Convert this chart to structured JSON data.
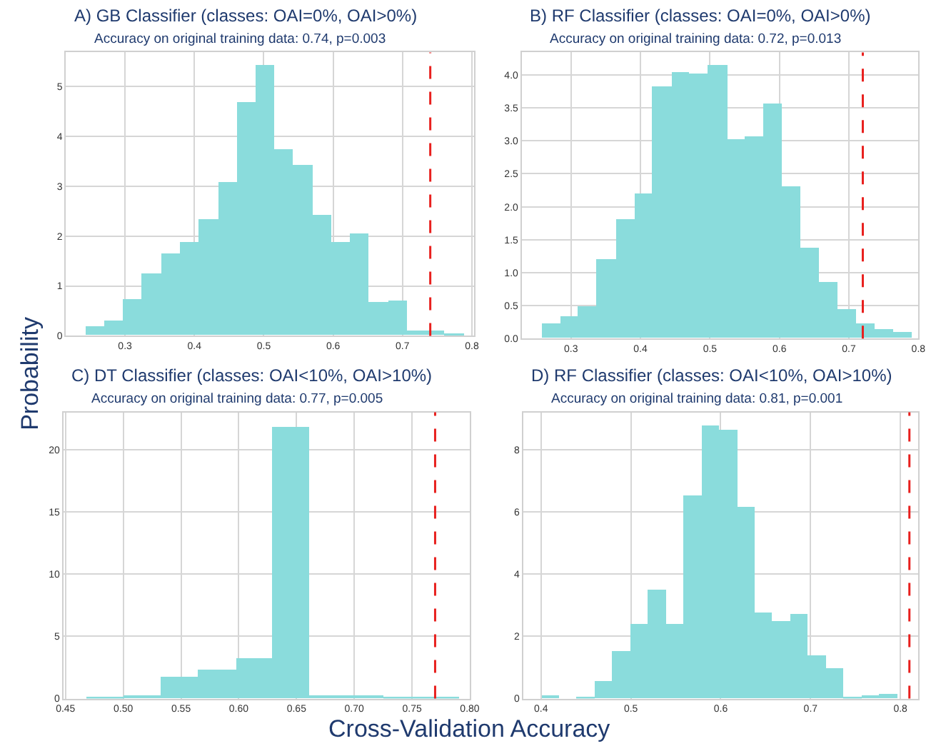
{
  "chart_data": [
    {
      "type": "histogram",
      "title": "A) GB Classifier (classes: OAI=0%, OAI>0%)",
      "subtitle": "Accuracy on original training data: 0.74, p=0.003",
      "ylabel": "Probability",
      "color": "#8adcdc",
      "bins": [
        0.243,
        0.271,
        0.297,
        0.325,
        0.352,
        0.38,
        0.407,
        0.435,
        0.461,
        0.488,
        0.516,
        0.543,
        0.571,
        0.597,
        0.625,
        0.652,
        0.68,
        0.707,
        0.735,
        0.761,
        0.789
      ],
      "values": [
        0.18,
        0.29,
        0.74,
        1.25,
        1.64,
        1.86,
        2.34,
        3.08,
        4.68,
        5.42,
        3.73,
        3.43,
        2.42,
        1.86,
        2.06,
        0.66,
        0.7,
        0.1,
        0.1,
        0.04
      ],
      "xlim": [
        0.215,
        0.803
      ],
      "xticks": [
        0.3,
        0.4,
        0.5,
        0.6,
        0.7,
        0.8
      ],
      "ylim": [
        0,
        5.68
      ],
      "yticks": [
        0,
        1,
        2,
        3,
        4,
        5
      ],
      "grid": true,
      "ref_lines": [
        {
          "axis": "x",
          "value": 0.74,
          "color": "#e8201e",
          "line_style": "dashed"
        }
      ]
    },
    {
      "type": "histogram",
      "title": "B) RF Classifier (classes: OAI=0%, OAI>0%)",
      "subtitle": "Accuracy on original training data: 0.72, p=0.013",
      "color": "#8adcdc",
      "bins": [
        0.257,
        0.284,
        0.31,
        0.336,
        0.364,
        0.391,
        0.417,
        0.444,
        0.47,
        0.497,
        0.524,
        0.55,
        0.577,
        0.604,
        0.63,
        0.657,
        0.684,
        0.71,
        0.737,
        0.763,
        0.791
      ],
      "values": [
        0.22,
        0.33,
        0.48,
        1.2,
        1.81,
        2.2,
        3.81,
        4.03,
        4.01,
        4.14,
        3.02,
        3.06,
        3.55,
        2.31,
        1.38,
        0.85,
        0.44,
        0.22,
        0.14,
        0.1
      ],
      "xlim": [
        0.229,
        0.8
      ],
      "xticks": [
        0.3,
        0.4,
        0.5,
        0.6,
        0.7,
        0.8
      ],
      "ylim": [
        0,
        4.34
      ],
      "yticks": [
        {
          "value": 0,
          "label": "0.0"
        },
        0.5,
        {
          "value": 1,
          "label": "1.0"
        },
        1.5,
        {
          "value": 2,
          "label": "2.0"
        },
        2.5,
        {
          "value": 3,
          "label": "3.0"
        },
        3.5,
        {
          "value": 4,
          "label": "4.0"
        }
      ],
      "grid": true,
      "ref_lines": [
        {
          "axis": "x",
          "value": 0.72,
          "color": "#e8201e",
          "line_style": "dashed"
        }
      ]
    },
    {
      "type": "histogram",
      "title": "C) DT Classifier (classes: OAI<10%, OAI>10%)",
      "subtitle": "Accuracy on original training data: 0.77, p=0.005",
      "xlabel": "Cross-Validation Accuracy",
      "color": "#8adcdc",
      "bins": [
        0.468,
        0.5,
        0.532,
        0.564,
        0.597,
        0.629,
        0.661,
        0.693,
        0.725,
        0.758,
        0.79
      ],
      "values": [
        0.1,
        0.3,
        1.8,
        2.3,
        3.3,
        21.9,
        0.3,
        0.3,
        0.2,
        0.1
      ],
      "xlim": [
        0.448,
        0.8
      ],
      "xticks": [
        0.45,
        {
          "value": 0.5,
          "label": "0.50"
        },
        0.55,
        {
          "value": 0.6,
          "label": "0.60"
        },
        0.65,
        {
          "value": 0.7,
          "label": "0.70"
        },
        0.75,
        {
          "value": 0.8,
          "label": "0.80"
        }
      ],
      "ylim": [
        0,
        23.0
      ],
      "yticks": [
        0,
        5,
        10,
        15,
        20
      ],
      "grid": true,
      "ref_lines": [
        {
          "axis": "x",
          "value": 0.77,
          "color": "#e8201e",
          "line_style": "dashed"
        }
      ]
    },
    {
      "type": "histogram",
      "title": "D) RF Classifier (classes: OAI<10%, OAI>10%)",
      "subtitle": "Accuracy on original training data: 0.81, p=0.001",
      "color": "#8adcdc",
      "bins": [
        0.4,
        0.419,
        0.439,
        0.459,
        0.479,
        0.499,
        0.519,
        0.539,
        0.558,
        0.578,
        0.598,
        0.618,
        0.638,
        0.657,
        0.677,
        0.697,
        0.717,
        0.736,
        0.757,
        0.776,
        0.796
      ],
      "values": [
        0.12,
        0,
        0.06,
        0.59,
        1.55,
        2.41,
        3.5,
        2.41,
        6.52,
        8.77,
        8.64,
        6.15,
        2.77,
        2.52,
        2.71,
        1.39,
        0.98,
        0.05,
        0.11,
        0.15
      ],
      "xlim": [
        0.38,
        0.82
      ],
      "xticks": [
        0.4,
        0.5,
        0.6,
        0.7,
        0.8
      ],
      "ylim": [
        0,
        9.2
      ],
      "yticks": [
        0,
        2,
        4,
        6,
        8
      ],
      "grid": true,
      "ref_lines": [
        {
          "axis": "x",
          "value": 0.81,
          "color": "#e8201e",
          "line_style": "dashed"
        }
      ]
    }
  ]
}
